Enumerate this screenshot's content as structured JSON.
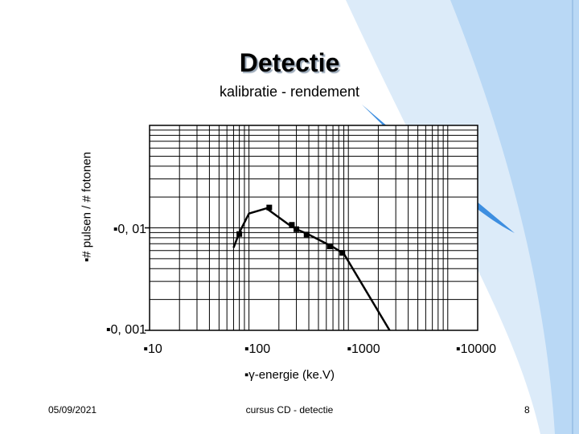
{
  "slide": {
    "title": "Detectie",
    "subtitle": "kalibratie - rendement"
  },
  "footer": {
    "date": "05/09/2021",
    "center": "cursus CD - detectie",
    "page": "8"
  },
  "colors": {
    "accent_swoosh": "#4f9be0",
    "swoosh_light": "#d6e8f8",
    "grid": "#000000",
    "curve": "#000000"
  },
  "chart_data": {
    "type": "line",
    "title": "",
    "xlabel": "▪γ-energie (ke.V)",
    "ylabel": "▪# pulsen / # fotonen",
    "x_scale": "log",
    "y_scale": "log",
    "xlim": [
      10,
      20000
    ],
    "ylim": [
      0.001,
      0.1
    ],
    "grid": true,
    "x_tick_labels": [
      "▪10",
      "▪100",
      "▪1000",
      "▪10000"
    ],
    "x_tick_values": [
      10,
      100,
      1000,
      10000
    ],
    "y_tick_labels": [
      "▪0, 01",
      "▪0, 001"
    ],
    "y_tick_values": [
      0.01,
      0.001
    ],
    "series": [
      {
        "line_x": [
          70,
          80,
          100,
          150,
          250,
          300,
          400,
          700,
          900,
          2600
        ],
        "line_y": [
          0.0064,
          0.009,
          0.0138,
          0.0155,
          0.0108,
          0.0097,
          0.0086,
          0.0065,
          0.0056,
          0.001
        ],
        "marker_x": [
          80,
          160,
          270,
          300,
          380,
          650,
          870
        ],
        "marker_y": [
          0.0087,
          0.0158,
          0.0107,
          0.0097,
          0.0086,
          0.0066,
          0.0057
        ]
      }
    ]
  }
}
